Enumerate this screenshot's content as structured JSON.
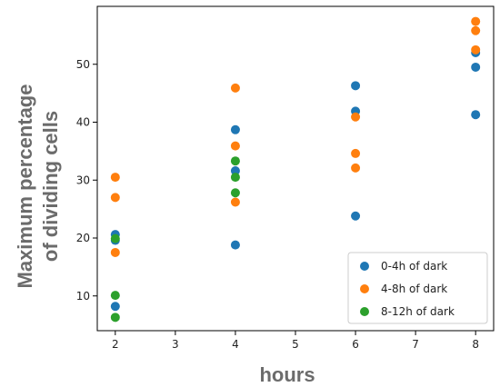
{
  "chart_data": {
    "type": "scatter",
    "title": "",
    "xlabel": "hours",
    "ylabel": [
      "Maximum percentage",
      "of dividing cells"
    ],
    "xlim": [
      1.7,
      8.3
    ],
    "ylim": [
      4,
      60
    ],
    "xticks": [
      2,
      3,
      4,
      5,
      6,
      7,
      8
    ],
    "yticks": [
      10,
      20,
      30,
      40,
      50
    ],
    "grid": false,
    "legend_position": "bottom-right",
    "series": [
      {
        "name": "0-4h of dark",
        "color": "#1f77b4",
        "points": [
          {
            "x": 2,
            "y": 8.2
          },
          {
            "x": 2,
            "y": 19.6
          },
          {
            "x": 2,
            "y": 20.6
          },
          {
            "x": 4,
            "y": 18.8
          },
          {
            "x": 4,
            "y": 31.6
          },
          {
            "x": 4,
            "y": 38.7
          },
          {
            "x": 6,
            "y": 23.8
          },
          {
            "x": 6,
            "y": 41.9
          },
          {
            "x": 6,
            "y": 46.3
          },
          {
            "x": 8,
            "y": 41.3
          },
          {
            "x": 8,
            "y": 49.5
          },
          {
            "x": 8,
            "y": 52.0
          }
        ]
      },
      {
        "name": "4-8h of dark",
        "color": "#ff7f0e",
        "points": [
          {
            "x": 2,
            "y": 17.5
          },
          {
            "x": 2,
            "y": 27.0
          },
          {
            "x": 2,
            "y": 30.5
          },
          {
            "x": 4,
            "y": 26.2
          },
          {
            "x": 4,
            "y": 35.9
          },
          {
            "x": 4,
            "y": 45.9
          },
          {
            "x": 6,
            "y": 32.1
          },
          {
            "x": 6,
            "y": 34.6
          },
          {
            "x": 6,
            "y": 40.9
          },
          {
            "x": 8,
            "y": 52.5
          },
          {
            "x": 8,
            "y": 55.8
          },
          {
            "x": 8,
            "y": 57.4
          }
        ]
      },
      {
        "name": "8-12h of dark",
        "color": "#2ca02c",
        "points": [
          {
            "x": 2,
            "y": 6.3
          },
          {
            "x": 2,
            "y": 10.1
          },
          {
            "x": 2,
            "y": 19.9
          },
          {
            "x": 4,
            "y": 27.8
          },
          {
            "x": 4,
            "y": 30.5
          },
          {
            "x": 4,
            "y": 33.3
          }
        ]
      }
    ]
  }
}
